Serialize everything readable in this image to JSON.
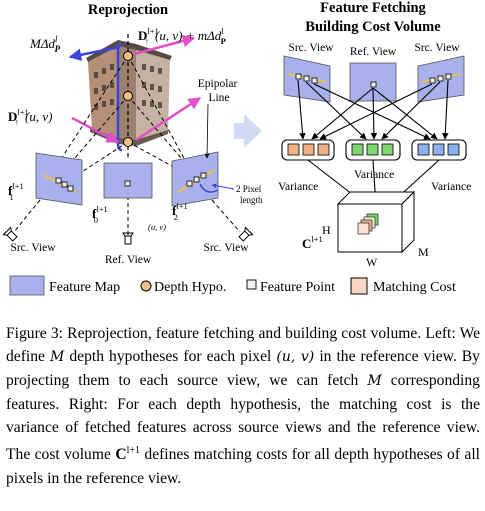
{
  "figure": {
    "left_panel": {
      "title": "Reprojection",
      "top_left_label": "MΔd",
      "top_left_sub": "P",
      "top_left_sup": "l",
      "top_right_label": "D",
      "top_right_sup": "l+1",
      "top_right_sub": "↑",
      "top_right_rest": "(u, v) + mΔd",
      "top_right_rest_sup": "l",
      "top_right_rest_sub": "P",
      "mid_left_label": "D",
      "mid_left_sup": "l+1",
      "mid_left_sub": "↑",
      "mid_left_rest": "(u, v)",
      "epipolar_label_1": "Epipolar",
      "epipolar_label_2": "Line",
      "pixel_len_1": "2 Pixel",
      "pixel_len_2": "length",
      "f1_label": "f",
      "f1_sup": "l+1",
      "f1_sub": "1",
      "f0_label": "f",
      "f0_sup": "l+1",
      "f0_sub": "0",
      "f2_label": "f",
      "f2_sup": "l+1",
      "f2_sub": "2",
      "uv_label": "(u, v)",
      "src_view_left": "Src. View",
      "ref_view": "Ref. View",
      "src_view_right": "Src. View"
    },
    "right_panel": {
      "title_1": "Feature Fetching",
      "title_2": "Building Cost Volume",
      "src_view_left": "Src. View",
      "ref_view": "Ref. View",
      "src_view_right": "Src. View",
      "variance_center": "Variance",
      "variance_left": "Variance",
      "variance_right": "Variance",
      "vol_h": "H",
      "vol_w": "W",
      "vol_m": "M",
      "vol_c": "C",
      "vol_c_sup": "l+1"
    },
    "legend": {
      "feature_map": "Feature Map",
      "depth_hypo": "Depth Hypo.",
      "feature_point": "Feature Point",
      "matching_cost": "Matching Cost"
    },
    "colors": {
      "feature_map": "#a9b1ec",
      "pink": "#e14fc9",
      "blue": "#3b46d8",
      "orange_cube": "#f2b088",
      "feature_green": "#7fd670",
      "feature_blue": "#8fb1ea"
    }
  },
  "caption": {
    "s1": "Figure 3: Reprojection, feature fetching and building cost volume. Left: We define",
    "s2": "M",
    "s3": "depth hypotheses for each pixel",
    "s4": "(u, v)",
    "s5": "in the reference view. By projecting them to each source view, we can fetch",
    "s6": "M",
    "s7": "corresponding features. Right: For each depth hypothesis, the matching cost is the variance of fetched features across source views and the reference view. The cost volume",
    "s8": "C",
    "s8_sup": "l+1",
    "s9": "defines matching costs for all depth hypotheses of all pixels in the reference view."
  }
}
